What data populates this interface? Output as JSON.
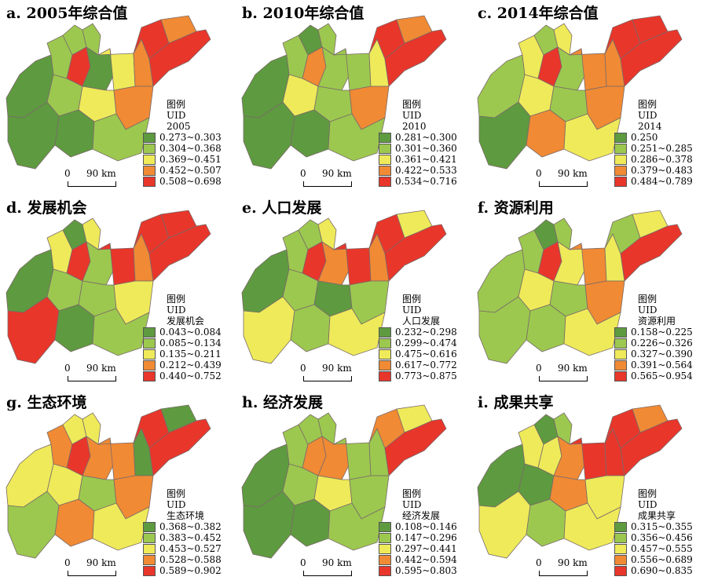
{
  "legend_header": [
    "图例",
    "UID"
  ],
  "scale_bar": {
    "zero": "0",
    "label": "90 km"
  },
  "colors": [
    "#5e9a3f",
    "#9cc84f",
    "#eeea5a",
    "#f08a34",
    "#e8362b"
  ],
  "panels": [
    {
      "title": "a. 2005年综合值",
      "legend_sub": "2005",
      "classes": [
        "0.273~0.303",
        "0.304~0.368",
        "0.369~0.451",
        "0.452~0.507",
        "0.508~0.698"
      ],
      "region_classes": [
        0,
        1,
        1,
        4,
        1,
        0,
        2,
        3,
        4,
        3,
        4,
        1,
        2,
        3,
        0,
        0,
        1
      ]
    },
    {
      "title": "b. 2010年综合值",
      "legend_sub": "2010",
      "classes": [
        "0.281~0.300",
        "0.301~0.360",
        "0.361~0.421",
        "0.422~0.533",
        "0.534~0.716"
      ],
      "region_classes": [
        0,
        1,
        0,
        3,
        1,
        1,
        1,
        2,
        4,
        3,
        4,
        2,
        1,
        3,
        0,
        0,
        1
      ]
    },
    {
      "title": "c. 2014年综合值",
      "legend_sub": "2014",
      "classes": [
        "0.250",
        "0.251~0.285",
        "0.286~0.378",
        "0.379~0.483",
        "0.484~0.789"
      ],
      "region_classes": [
        1,
        2,
        1,
        4,
        2,
        1,
        3,
        3,
        4,
        4,
        4,
        2,
        1,
        3,
        0,
        3,
        2
      ]
    },
    {
      "title": "d. 发展机会",
      "legend_sub": "发展机会",
      "classes": [
        "0.043~0.084",
        "0.085~0.134",
        "0.135~0.211",
        "0.212~0.439",
        "0.440~0.752"
      ],
      "region_classes": [
        0,
        2,
        0,
        4,
        2,
        1,
        4,
        3,
        4,
        4,
        4,
        1,
        1,
        2,
        4,
        0,
        1
      ]
    },
    {
      "title": "e. 人口发展",
      "legend_sub": "人口发展",
      "classes": [
        "0.232~0.298",
        "0.299~0.474",
        "0.475~0.616",
        "0.617~0.772",
        "0.773~0.875"
      ],
      "region_classes": [
        0,
        1,
        1,
        4,
        2,
        3,
        4,
        3,
        4,
        2,
        4,
        1,
        0,
        1,
        2,
        1,
        2
      ]
    },
    {
      "title": "f. 资源利用",
      "legend_sub": "资源利用",
      "classes": [
        "0.158~0.225",
        "0.226~0.326",
        "0.327~0.390",
        "0.391~0.564",
        "0.565~0.954"
      ],
      "region_classes": [
        1,
        1,
        0,
        4,
        1,
        2,
        3,
        2,
        1,
        2,
        4,
        2,
        1,
        3,
        1,
        1,
        2
      ]
    },
    {
      "title": "g. 生态环境",
      "legend_sub": "生态环境",
      "classes": [
        "0.368~0.382",
        "0.383~0.452",
        "0.453~0.527",
        "0.528~0.588",
        "0.589~0.902"
      ],
      "region_classes": [
        2,
        3,
        2,
        4,
        2,
        3,
        3,
        0,
        4,
        0,
        4,
        2,
        1,
        3,
        1,
        3,
        2
      ]
    },
    {
      "title": "h. 经济发展",
      "legend_sub": "经济发展",
      "classes": [
        "0.108~0.146",
        "0.147~0.296",
        "0.297~0.441",
        "0.442~0.594",
        "0.595~0.803"
      ],
      "region_classes": [
        0,
        1,
        1,
        3,
        1,
        3,
        1,
        1,
        3,
        2,
        4,
        1,
        2,
        1,
        0,
        0,
        1
      ]
    },
    {
      "title": "i. 成果共享",
      "legend_sub": "成果共享",
      "classes": [
        "0.315~0.355",
        "0.356~0.456",
        "0.457~0.555",
        "0.556~0.689",
        "0.690~0.835"
      ],
      "region_classes": [
        0,
        2,
        0,
        2,
        1,
        3,
        4,
        4,
        4,
        3,
        4,
        0,
        3,
        2,
        2,
        1,
        2
      ]
    }
  ]
}
